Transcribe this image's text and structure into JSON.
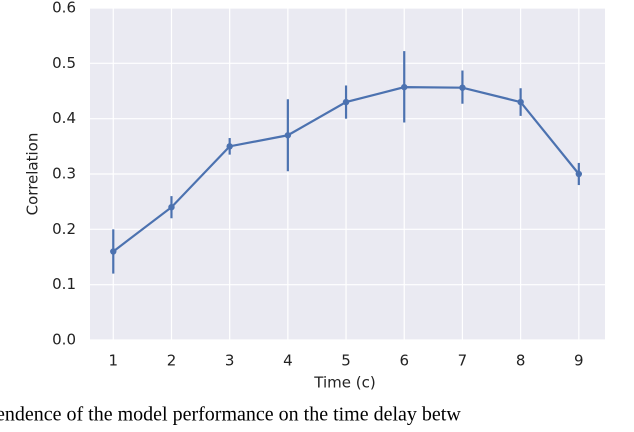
{
  "chart_data": {
    "type": "line",
    "x_label": "Time (c)",
    "y_label": "Correlation",
    "caption": "endence of the model performance on the time delay betw",
    "x": [
      1,
      2,
      3,
      4,
      5,
      6,
      7,
      8,
      9
    ],
    "series": [
      {
        "color": "#4c72b0",
        "values": [
          0.16,
          0.24,
          0.35,
          0.37,
          0.43,
          0.457,
          0.456,
          0.43,
          0.3
        ],
        "lower": [
          0.12,
          0.22,
          0.335,
          0.305,
          0.4,
          0.393,
          0.427,
          0.405,
          0.28
        ],
        "upper": [
          0.2,
          0.26,
          0.365,
          0.435,
          0.46,
          0.522,
          0.487,
          0.455,
          0.32
        ]
      }
    ],
    "xlim": [
      0.6,
      9.45
    ],
    "ylim": [
      0,
      0.6
    ],
    "xticks": [
      1,
      2,
      3,
      4,
      5,
      6,
      7,
      8,
      9
    ],
    "yticks": [
      {
        "value": 0,
        "label": "0.0"
      },
      0.1,
      0.2,
      0.3,
      0.4,
      0.5,
      0.6
    ],
    "grid": true,
    "background": "#eaeaf2"
  }
}
